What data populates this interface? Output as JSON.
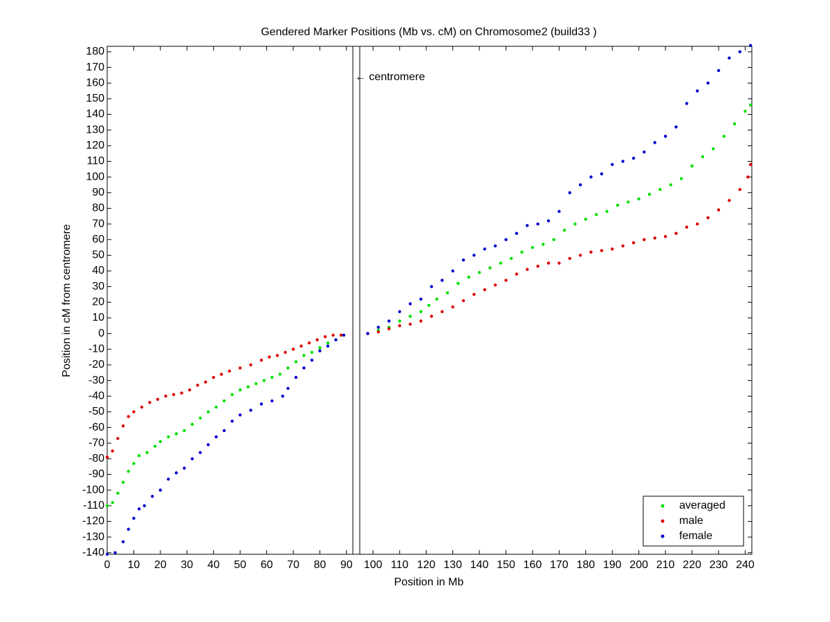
{
  "chart_data": {
    "type": "scatter",
    "title": "Gendered Marker Positions (Mb vs. cM) on Chromosome2 (build33 )",
    "x_label": "Position in Mb",
    "y_label": "Position in cM from centromere",
    "annotation": "← centromere",
    "vlines": [
      92.4,
      95.0
    ],
    "xlim": [
      0,
      242.5
    ],
    "ylim": [
      -141,
      183.5
    ],
    "xticks": [
      0,
      10,
      20,
      30,
      40,
      50,
      60,
      70,
      80,
      90,
      100,
      110,
      120,
      130,
      140,
      150,
      160,
      170,
      180,
      190,
      200,
      210,
      220,
      230,
      240
    ],
    "yticks": [
      -140,
      -130,
      -120,
      -110,
      -100,
      -90,
      -80,
      -70,
      -60,
      -50,
      -40,
      -30,
      -20,
      -10,
      0,
      10,
      20,
      30,
      40,
      50,
      60,
      70,
      80,
      90,
      100,
      110,
      120,
      130,
      140,
      150,
      160,
      170,
      180
    ],
    "legend": "lower right",
    "series": [
      {
        "name": "averaged",
        "color": "#00e000",
        "x": [
          0,
          2,
          4,
          6,
          8,
          10,
          12,
          15,
          18,
          20,
          23,
          26,
          29,
          32,
          35,
          38,
          41,
          44,
          47,
          50,
          53,
          56,
          59,
          62,
          65,
          68,
          71,
          74,
          77,
          80,
          83,
          86,
          89,
          98,
          102,
          106,
          110,
          114,
          118,
          121,
          124,
          128,
          132,
          136,
          140,
          144,
          148,
          152,
          156,
          160,
          164,
          168,
          172,
          176,
          180,
          184,
          188,
          192,
          196,
          200,
          204,
          208,
          212,
          216,
          220,
          224,
          228,
          232,
          236,
          240,
          242
        ],
        "values": [
          -110,
          -108,
          -102,
          -95,
          -88,
          -83,
          -78,
          -76,
          -72,
          -69,
          -66,
          -64,
          -62,
          -58,
          -54,
          -50,
          -47,
          -43,
          -39,
          -36,
          -34,
          -32,
          -30,
          -28,
          -26,
          -22,
          -18,
          -14,
          -12,
          -9,
          -6,
          -4,
          -1,
          0,
          2,
          4,
          8,
          11,
          14,
          18,
          22,
          26,
          32,
          36,
          39,
          42,
          45,
          48,
          52,
          55,
          57,
          60,
          66,
          70,
          73,
          76,
          78,
          82,
          84,
          86,
          89,
          92,
          95,
          99,
          107,
          113,
          118,
          126,
          134,
          142,
          146
        ]
      },
      {
        "name": "male",
        "color": "#e00000",
        "x": [
          0,
          2,
          4,
          6,
          8,
          10,
          13,
          16,
          19,
          22,
          25,
          28,
          31,
          34,
          37,
          40,
          43,
          46,
          50,
          54,
          58,
          61,
          64,
          67,
          70,
          73,
          76,
          79,
          82,
          85,
          88,
          98,
          102,
          106,
          110,
          114,
          118,
          122,
          126,
          130,
          134,
          138,
          142,
          146,
          150,
          154,
          158,
          162,
          166,
          170,
          174,
          178,
          182,
          186,
          190,
          194,
          198,
          202,
          206,
          210,
          214,
          218,
          222,
          226,
          230,
          234,
          238,
          241,
          242
        ],
        "values": [
          -79,
          -75,
          -67,
          -59,
          -53,
          -50,
          -47,
          -44,
          -42,
          -40,
          -39,
          -38,
          -36,
          -33,
          -31,
          -28,
          -26,
          -24,
          -22,
          -20,
          -17,
          -15,
          -14,
          -12,
          -10,
          -8,
          -6,
          -4,
          -2,
          -1,
          -1,
          0,
          1,
          3,
          5,
          6,
          8,
          11,
          14,
          17,
          21,
          25,
          28,
          31,
          34,
          38,
          41,
          43,
          45,
          45,
          48,
          50,
          52,
          53,
          54,
          56,
          58,
          60,
          61,
          62,
          64,
          68,
          70,
          74,
          79,
          85,
          92,
          100,
          108
        ]
      },
      {
        "name": "female",
        "color": "#0000d0",
        "x": [
          0,
          3,
          6,
          8,
          10,
          12,
          14,
          17,
          20,
          23,
          26,
          29,
          32,
          35,
          38,
          41,
          44,
          47,
          50,
          54,
          58,
          62,
          66,
          68,
          71,
          74,
          77,
          80,
          83,
          86,
          89,
          98,
          102,
          106,
          110,
          114,
          118,
          122,
          126,
          130,
          134,
          138,
          142,
          146,
          150,
          154,
          158,
          162,
          166,
          170,
          174,
          178,
          182,
          186,
          190,
          194,
          198,
          202,
          206,
          210,
          214,
          218,
          222,
          226,
          230,
          234,
          238,
          242
        ],
        "values": [
          -141,
          -140,
          -133,
          -125,
          -118,
          -112,
          -110,
          -104,
          -100,
          -93,
          -89,
          -86,
          -80,
          -76,
          -71,
          -66,
          -62,
          -56,
          -52,
          -49,
          -45,
          -43,
          -40,
          -35,
          -28,
          -22,
          -17,
          -11,
          -8,
          -4,
          -1,
          0,
          4,
          8,
          14,
          19,
          22,
          30,
          34,
          40,
          47,
          50,
          54,
          56,
          60,
          64,
          69,
          70,
          72,
          78,
          90,
          95,
          100,
          102,
          108,
          110,
          112,
          116,
          122,
          126,
          132,
          147,
          155,
          160,
          168,
          176,
          180,
          184
        ]
      }
    ]
  }
}
